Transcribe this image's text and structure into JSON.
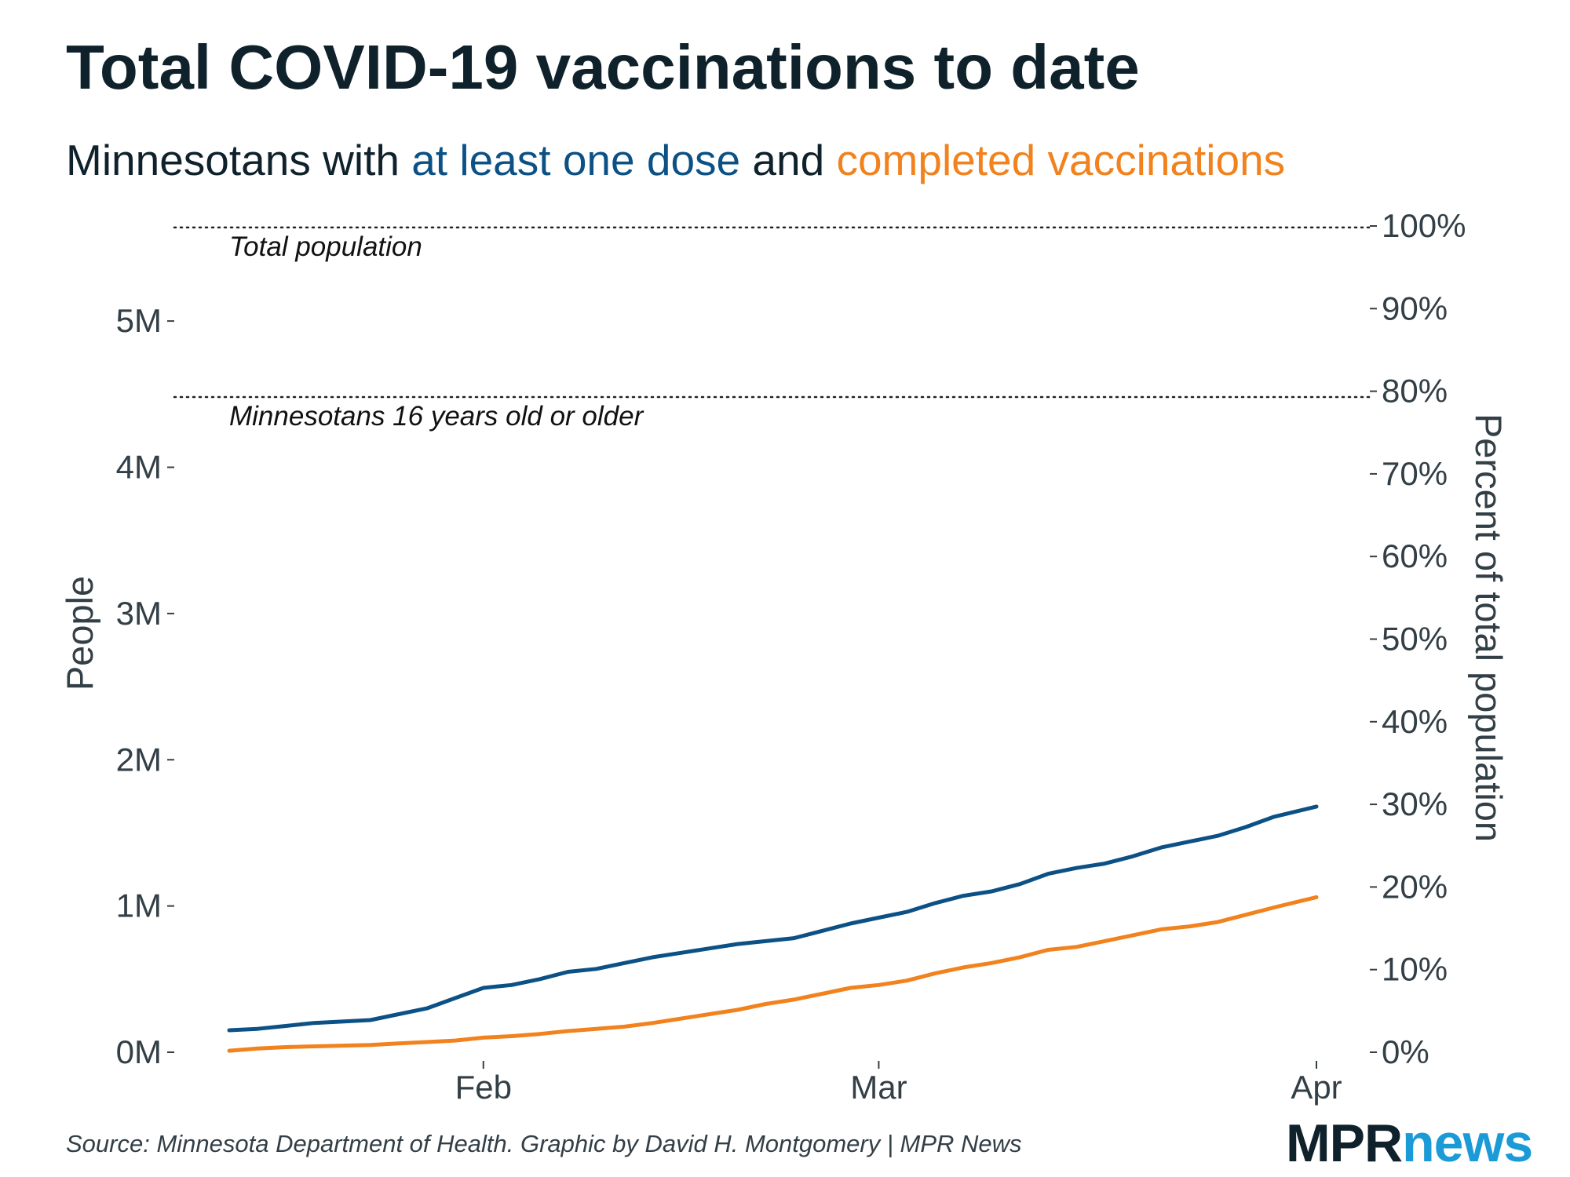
{
  "title": "Total COVID-19 vaccinations to date",
  "subtitle": {
    "prefix": "Minnesotans with ",
    "dose_label": "at least one dose",
    "joiner": " and ",
    "complete_label": "completed vaccinations"
  },
  "source": "Source: Minnesota Department of Health. Graphic by David H. Montgomery | MPR News",
  "logo": {
    "part1": "MPR",
    "part2": "news"
  },
  "colors": {
    "dose": "#0c5186",
    "complete": "#f1821d",
    "text": "#0f222b",
    "axis": "#333f46"
  },
  "chart_data": {
    "type": "line",
    "x_type": "date",
    "xlim": [
      "2021-01-14",
      "2021-04-01"
    ],
    "x_ticks": [
      {
        "date": "2021-02-01",
        "label": "Feb"
      },
      {
        "date": "2021-03-01",
        "label": "Mar"
      },
      {
        "date": "2021-04-01",
        "label": "Apr"
      }
    ],
    "ylabel": "People",
    "ylim": [
      0,
      5650000
    ],
    "y_ticks": [
      {
        "value": 0,
        "label": "0M"
      },
      {
        "value": 1000000,
        "label": "1M"
      },
      {
        "value": 2000000,
        "label": "2M"
      },
      {
        "value": 3000000,
        "label": "3M"
      },
      {
        "value": 4000000,
        "label": "4M"
      },
      {
        "value": 5000000,
        "label": "5M"
      }
    ],
    "y2label": "Percent of total population",
    "y2_ticks": [
      {
        "value": 0,
        "label": "0%"
      },
      {
        "value": 10,
        "label": "10%"
      },
      {
        "value": 20,
        "label": "20%"
      },
      {
        "value": 30,
        "label": "30%"
      },
      {
        "value": 40,
        "label": "40%"
      },
      {
        "value": 50,
        "label": "50%"
      },
      {
        "value": 60,
        "label": "60%"
      },
      {
        "value": 70,
        "label": "70%"
      },
      {
        "value": 80,
        "label": "80%"
      },
      {
        "value": 90,
        "label": "90%"
      },
      {
        "value": 100,
        "label": "100%"
      }
    ],
    "y2lim": [
      0,
      100
    ],
    "reference_lines": [
      {
        "label": "Total population",
        "value": 5640000
      },
      {
        "label": "Minnesotans 16 years old or older",
        "value": 4480000
      }
    ],
    "grid": false,
    "series": [
      {
        "name": "at least one dose",
        "color": "#0c5186",
        "points": [
          [
            "2021-01-14",
            150000
          ],
          [
            "2021-01-16",
            160000
          ],
          [
            "2021-01-18",
            180000
          ],
          [
            "2021-01-20",
            200000
          ],
          [
            "2021-01-22",
            210000
          ],
          [
            "2021-01-24",
            220000
          ],
          [
            "2021-01-26",
            260000
          ],
          [
            "2021-01-28",
            300000
          ],
          [
            "2021-01-30",
            370000
          ],
          [
            "2021-02-01",
            440000
          ],
          [
            "2021-02-03",
            460000
          ],
          [
            "2021-02-05",
            500000
          ],
          [
            "2021-02-07",
            550000
          ],
          [
            "2021-02-09",
            570000
          ],
          [
            "2021-02-11",
            610000
          ],
          [
            "2021-02-13",
            650000
          ],
          [
            "2021-02-15",
            680000
          ],
          [
            "2021-02-17",
            710000
          ],
          [
            "2021-02-19",
            740000
          ],
          [
            "2021-02-21",
            760000
          ],
          [
            "2021-02-23",
            780000
          ],
          [
            "2021-02-25",
            830000
          ],
          [
            "2021-02-27",
            880000
          ],
          [
            "2021-03-01",
            920000
          ],
          [
            "2021-03-03",
            960000
          ],
          [
            "2021-03-05",
            1020000
          ],
          [
            "2021-03-07",
            1070000
          ],
          [
            "2021-03-09",
            1100000
          ],
          [
            "2021-03-11",
            1150000
          ],
          [
            "2021-03-13",
            1220000
          ],
          [
            "2021-03-15",
            1260000
          ],
          [
            "2021-03-17",
            1290000
          ],
          [
            "2021-03-19",
            1340000
          ],
          [
            "2021-03-21",
            1400000
          ],
          [
            "2021-03-23",
            1440000
          ],
          [
            "2021-03-25",
            1480000
          ],
          [
            "2021-03-27",
            1540000
          ],
          [
            "2021-03-29",
            1610000
          ],
          [
            "2021-04-01",
            1680000
          ]
        ]
      },
      {
        "name": "completed vaccinations",
        "color": "#f1821d",
        "points": [
          [
            "2021-01-14",
            10000
          ],
          [
            "2021-01-16",
            25000
          ],
          [
            "2021-01-18",
            35000
          ],
          [
            "2021-01-20",
            40000
          ],
          [
            "2021-01-22",
            45000
          ],
          [
            "2021-01-24",
            50000
          ],
          [
            "2021-01-26",
            60000
          ],
          [
            "2021-01-28",
            70000
          ],
          [
            "2021-01-30",
            80000
          ],
          [
            "2021-02-01",
            100000
          ],
          [
            "2021-02-03",
            110000
          ],
          [
            "2021-02-05",
            125000
          ],
          [
            "2021-02-07",
            145000
          ],
          [
            "2021-02-09",
            160000
          ],
          [
            "2021-02-11",
            175000
          ],
          [
            "2021-02-13",
            200000
          ],
          [
            "2021-02-15",
            230000
          ],
          [
            "2021-02-17",
            260000
          ],
          [
            "2021-02-19",
            290000
          ],
          [
            "2021-02-21",
            330000
          ],
          [
            "2021-02-23",
            360000
          ],
          [
            "2021-02-25",
            400000
          ],
          [
            "2021-02-27",
            440000
          ],
          [
            "2021-03-01",
            460000
          ],
          [
            "2021-03-03",
            490000
          ],
          [
            "2021-03-05",
            540000
          ],
          [
            "2021-03-07",
            580000
          ],
          [
            "2021-03-09",
            610000
          ],
          [
            "2021-03-11",
            650000
          ],
          [
            "2021-03-13",
            700000
          ],
          [
            "2021-03-15",
            720000
          ],
          [
            "2021-03-17",
            760000
          ],
          [
            "2021-03-19",
            800000
          ],
          [
            "2021-03-21",
            840000
          ],
          [
            "2021-03-23",
            860000
          ],
          [
            "2021-03-25",
            890000
          ],
          [
            "2021-03-27",
            940000
          ],
          [
            "2021-03-29",
            990000
          ],
          [
            "2021-04-01",
            1060000
          ]
        ]
      }
    ]
  }
}
